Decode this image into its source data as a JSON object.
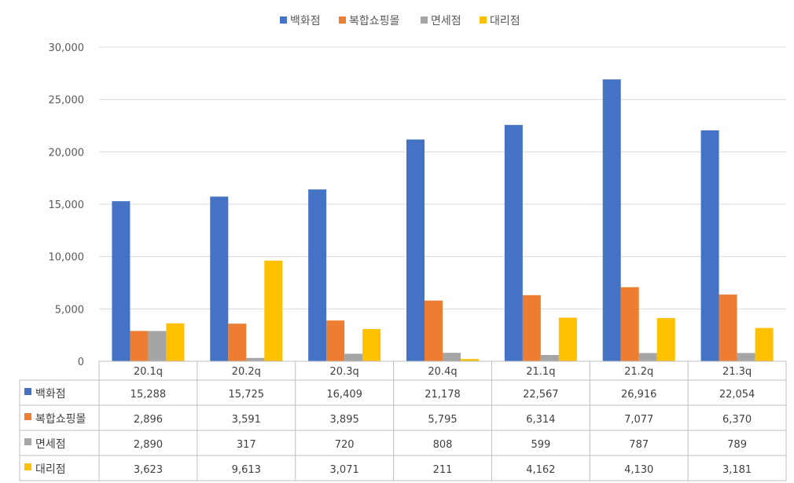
{
  "chart_data": {
    "type": "bar",
    "categories": [
      "20.1q",
      "20.2q",
      "20.3q",
      "20.4q",
      "21.1q",
      "21.2q",
      "21.3q"
    ],
    "series": [
      {
        "name": "백화점",
        "color": "#4472C4",
        "values": [
          15288,
          15725,
          16409,
          21178,
          22567,
          26916,
          22054
        ]
      },
      {
        "name": "복합쇼핑몰",
        "color": "#ED7D31",
        "values": [
          2896,
          3591,
          3895,
          5795,
          6314,
          7077,
          6370
        ]
      },
      {
        "name": "면세점",
        "color": "#A5A5A5",
        "values": [
          2890,
          317,
          720,
          808,
          599,
          787,
          789
        ]
      },
      {
        "name": "대리점",
        "color": "#FFC000",
        "values": [
          3623,
          9613,
          3071,
          211,
          4162,
          4130,
          3181
        ]
      }
    ],
    "table_values": [
      [
        "15,288",
        "15,725",
        "16,409",
        "21,178",
        "22,567",
        "26,916",
        "22,054"
      ],
      [
        "2,896",
        "3,591",
        "3,895",
        "5,795",
        "6,314",
        "7,077",
        "6,370"
      ],
      [
        "2,890",
        "317",
        "720",
        "808",
        "599",
        "787",
        "789"
      ],
      [
        "3,623",
        "9,613",
        "3,071",
        "211",
        "4,162",
        "4,130",
        "3,181"
      ]
    ],
    "ylim": [
      0,
      30000
    ],
    "yticks": [
      0,
      5000,
      10000,
      15000,
      20000,
      25000,
      30000
    ],
    "ytick_labels": [
      "0",
      "5,000",
      "10,000",
      "15,000",
      "20,000",
      "25,000",
      "30,000"
    ],
    "grid": true,
    "legend": "top-center",
    "data_table": true
  }
}
